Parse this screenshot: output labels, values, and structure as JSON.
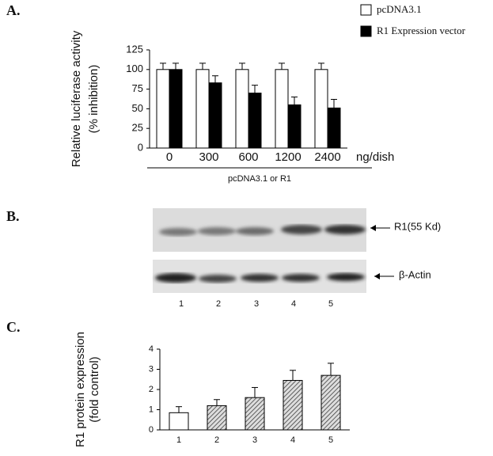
{
  "chart_data": [
    {
      "type": "grouped_bar",
      "panel": "A.",
      "y_label": [
        "Relative luciferase activity",
        "(% inhibition)"
      ],
      "x_unit": "ng/dish",
      "x_label": "pcDNA3.1 or R1",
      "categories": [
        "0",
        "300",
        "600",
        "1200",
        "2400"
      ],
      "series": [
        {
          "name": "pcDNA3.1",
          "color": "#ffffff",
          "values": [
            100,
            100,
            100,
            100,
            100
          ],
          "errors": [
            8,
            8,
            8,
            8,
            8
          ]
        },
        {
          "name": "R1 Expression vector",
          "color": "#000000",
          "values": [
            100,
            83,
            70,
            55,
            51
          ],
          "errors": [
            8,
            9,
            10,
            10,
            11
          ]
        }
      ],
      "ylim": [
        0,
        125
      ],
      "yticks": [
        0,
        25,
        50,
        75,
        100,
        125
      ]
    },
    {
      "type": "bar",
      "panel": "C.",
      "y_label": [
        "R1 protein expression",
        "(fold control)"
      ],
      "categories": [
        "1",
        "2",
        "3",
        "4",
        "5"
      ],
      "values": [
        0.85,
        1.2,
        1.6,
        2.45,
        2.7
      ],
      "errors": [
        0.3,
        0.3,
        0.5,
        0.5,
        0.6
      ],
      "colors": [
        "#ffffff",
        "hatch",
        "hatch",
        "hatch",
        "hatch"
      ],
      "ylim": [
        0,
        4
      ],
      "yticks": [
        0,
        1,
        2,
        3,
        4
      ]
    }
  ],
  "blot": {
    "panel": "B.",
    "bands": [
      "R1(55 Kd)",
      "β-Actin"
    ],
    "lanes": [
      "1",
      "2",
      "3",
      "4",
      "5"
    ]
  }
}
